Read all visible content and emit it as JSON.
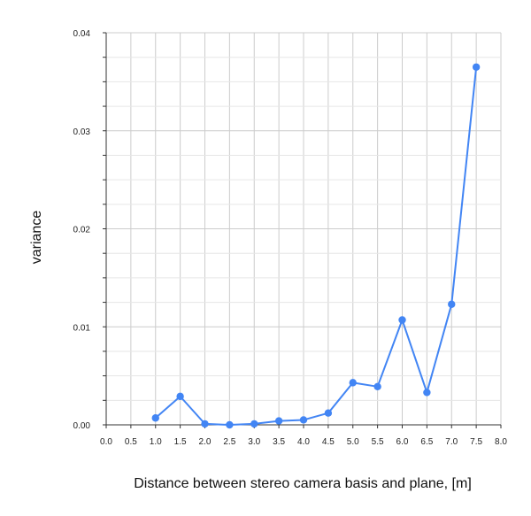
{
  "chart_data": {
    "type": "line",
    "title": "",
    "xlabel": "Distance between stereo camera basis and plane, [m]",
    "ylabel": "variance",
    "xlim": [
      0.0,
      8.0
    ],
    "ylim": [
      0.0,
      0.04
    ],
    "x_ticks": [
      "0.0",
      "0.5",
      "1.0",
      "1.5",
      "2.0",
      "2.5",
      "3.0",
      "3.5",
      "4.0",
      "4.5",
      "5.0",
      "5.5",
      "6.0",
      "6.5",
      "7.0",
      "7.5",
      "8.0"
    ],
    "y_ticks": [
      "0.00",
      "0.01",
      "0.02",
      "0.03",
      "0.04"
    ],
    "grid": true,
    "legend": "none",
    "series": [
      {
        "color": "#4285f4",
        "x": [
          1.0,
          1.5,
          2.0,
          2.5,
          3.0,
          3.5,
          4.0,
          4.5,
          5.0,
          5.5,
          6.0,
          6.5,
          7.0,
          7.5
        ],
        "y": [
          0.0007,
          0.0029,
          0.0001,
          0.0,
          0.0001,
          0.0004,
          0.0005,
          0.0012,
          0.0043,
          0.0039,
          0.0107,
          0.0033,
          0.0123,
          0.0365
        ]
      }
    ],
    "colors": {
      "grid_major": "#cccccc",
      "grid_minor": "#e6e6e6",
      "axis": "#333333"
    }
  }
}
